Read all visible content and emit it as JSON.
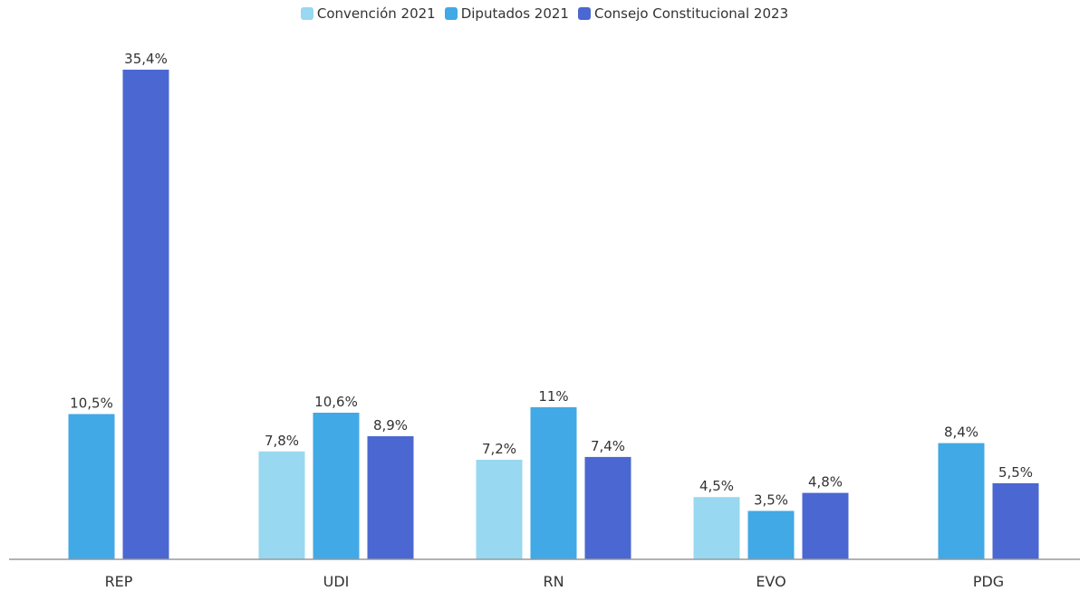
{
  "chart_data": {
    "type": "bar",
    "categories": [
      "REP",
      "UDI",
      "RN",
      "EVO",
      "PDG"
    ],
    "series": [
      {
        "name": "Convención 2021",
        "color": "#98d8f0",
        "values": [
          null,
          7.8,
          7.2,
          4.5,
          null
        ]
      },
      {
        "name": "Diputados 2021",
        "color": "#41a9e5",
        "values": [
          10.5,
          10.6,
          11,
          3.5,
          8.4
        ]
      },
      {
        "name": "Consejo Constitucional 2023",
        "color": "#4b67d1",
        "values": [
          35.4,
          8.9,
          7.4,
          4.8,
          5.5
        ]
      }
    ],
    "data_labels": [
      [
        null,
        "7,8%",
        "7,2%",
        "4,5%",
        null
      ],
      [
        "10,5%",
        "10,6%",
        "11%",
        "3,5%",
        "8,4%"
      ],
      [
        "35,4%",
        "8,9%",
        "7,4%",
        "4,8%",
        "5,5%"
      ]
    ],
    "ylim": [
      0,
      35.4
    ],
    "grid": false,
    "legend_position": "top-center",
    "axis_color": "#999999",
    "label_color": "#333333"
  }
}
